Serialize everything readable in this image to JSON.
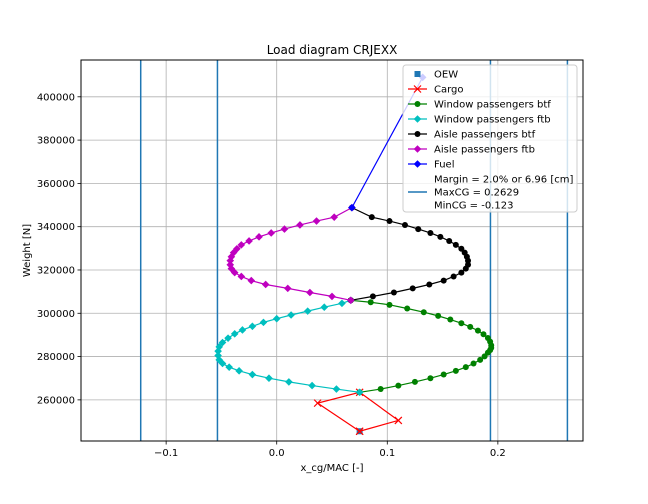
{
  "chart_data": {
    "type": "line",
    "title": "Load diagram CRJEXX",
    "xlabel": "x_cg/MAC [-]",
    "ylabel": "Weight [N]",
    "xlim": [
      -0.177,
      0.277
    ],
    "ylim": [
      241000,
      417000
    ],
    "xticks": [
      -0.1,
      0.0,
      0.1,
      0.2
    ],
    "xtick_labels": [
      "−0.1",
      "0.0",
      "0.1",
      "0.2"
    ],
    "yticks": [
      260000,
      280000,
      300000,
      320000,
      340000,
      360000,
      380000,
      400000
    ],
    "ytick_labels": [
      "260000",
      "280000",
      "300000",
      "320000",
      "340000",
      "360000",
      "380000",
      "400000"
    ],
    "grid": true,
    "legend_placement": "upper right",
    "vlines": [
      {
        "x": -0.123,
        "color": "#1f77b4"
      },
      {
        "x": -0.0536,
        "color": "#1f77b4"
      },
      {
        "x": 0.1933,
        "color": "#1f77b4"
      },
      {
        "x": 0.2629,
        "color": "#1f77b4"
      }
    ],
    "series": [
      {
        "name": "OEW",
        "color": "#1f77b4",
        "marker": "square",
        "line": false,
        "x": [
          0.075
        ],
        "y": [
          245500
        ]
      },
      {
        "name": "Cargo",
        "color": "#ff0000",
        "marker": "x",
        "line": true,
        "x": [
          0.075,
          0.11,
          0.075,
          0.037,
          0.075
        ],
        "y": [
          245500,
          250500,
          263500,
          258500,
          245500
        ]
      },
      {
        "name": "Window passengers btf",
        "color": "#008000",
        "marker": "circle",
        "line": true,
        "x": [
          0.075,
          0.094,
          0.11,
          0.125,
          0.139,
          0.151,
          0.162,
          0.171,
          0.178,
          0.184,
          0.188,
          0.191,
          0.193,
          0.194,
          0.194,
          0.193,
          0.191,
          0.187,
          0.182,
          0.175,
          0.167,
          0.157,
          0.146,
          0.133,
          0.118,
          0.102,
          0.085,
          0.067
        ],
        "y": [
          263500,
          265000,
          266600,
          268300,
          270000,
          271700,
          273400,
          275100,
          276800,
          278500,
          280100,
          281800,
          283000,
          284000,
          285200,
          286900,
          288600,
          290300,
          292000,
          293700,
          295400,
          297100,
          298800,
          300500,
          302200,
          303900,
          305100,
          306000
        ]
      },
      {
        "name": "Window passengers ftb",
        "color": "#00bfbf",
        "marker": "diamond",
        "line": true,
        "x": [
          0.075,
          0.054,
          0.032,
          0.011,
          -0.007,
          -0.022,
          -0.034,
          -0.043,
          -0.049,
          -0.052,
          -0.053,
          -0.053,
          -0.052,
          -0.049,
          -0.044,
          -0.038,
          -0.031,
          -0.022,
          -0.012,
          0.0,
          0.013,
          0.028,
          0.043,
          0.059,
          0.067
        ],
        "y": [
          263500,
          265000,
          266600,
          268300,
          270000,
          271700,
          273400,
          275100,
          276800,
          278500,
          280500,
          282500,
          284500,
          286500,
          288500,
          290500,
          292300,
          294000,
          295800,
          297500,
          299200,
          301000,
          302800,
          304600,
          306000
        ]
      },
      {
        "name": "Aisle passengers btf",
        "color": "#000000",
        "marker": "circle",
        "line": true,
        "x": [
          0.067,
          0.087,
          0.106,
          0.123,
          0.138,
          0.151,
          0.16,
          0.167,
          0.171,
          0.173,
          0.173,
          0.172,
          0.17,
          0.167,
          0.162,
          0.156,
          0.148,
          0.139,
          0.128,
          0.116,
          0.102,
          0.086,
          0.068
        ],
        "y": [
          306000,
          307800,
          309600,
          311500,
          313300,
          315100,
          317000,
          318800,
          320600,
          322400,
          324300,
          326100,
          328000,
          329800,
          331600,
          333400,
          335300,
          337100,
          338900,
          340800,
          342600,
          344400,
          348800
        ]
      },
      {
        "name": "Aisle passengers ftb",
        "color": "#bf00bf",
        "marker": "diamond",
        "line": true,
        "x": [
          0.067,
          0.05,
          0.03,
          0.01,
          -0.01,
          -0.023,
          -0.032,
          -0.038,
          -0.041,
          -0.042,
          -0.042,
          -0.041,
          -0.039,
          -0.036,
          -0.032,
          -0.025,
          -0.016,
          -0.005,
          0.007,
          0.021,
          0.036,
          0.052,
          0.068
        ],
        "y": [
          306000,
          307800,
          309600,
          311500,
          313300,
          315100,
          317000,
          318800,
          320600,
          322400,
          324300,
          326100,
          328000,
          329800,
          331600,
          333400,
          335300,
          337100,
          338900,
          340800,
          342600,
          344400,
          348800
        ]
      },
      {
        "name": "Fuel",
        "color": "#0000ff",
        "marker": "diamond",
        "line": true,
        "x": [
          0.068,
          0.132
        ],
        "y": [
          348800,
          409000
        ]
      }
    ],
    "legend_extra": {
      "name": "Margin = 2.0% or 6.96 [cm]\nMaxCG = 0.2629\nMinCG = -0.123",
      "color": "#1f77b4"
    }
  }
}
